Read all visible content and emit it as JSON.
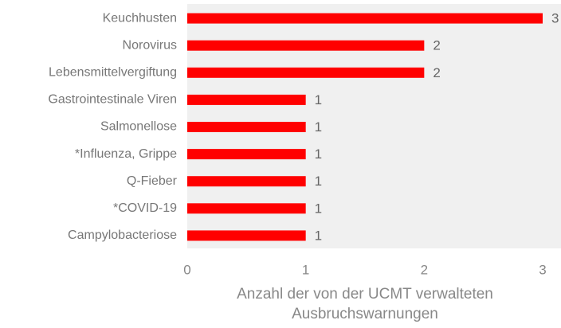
{
  "chart_data": {
    "type": "bar",
    "orientation": "horizontal",
    "x_label": "Anzahl der von der UCMT verwalteten Ausbruchswarnungen",
    "categories": [
      "Keuchhusten",
      "Norovirus",
      "Lebensmittelvergiftung",
      "Gastrointestinale Viren",
      "Salmonellose",
      "*Influenza, Grippe",
      "Q-Fieber",
      "*COVID-19",
      "Campylobacteriose"
    ],
    "values": [
      3,
      2,
      2,
      1,
      1,
      1,
      1,
      1,
      1
    ],
    "color": "#ff0000",
    "xlim": [
      0,
      3
    ],
    "xticks": [
      0,
      1,
      2,
      3
    ],
    "grid": false
  }
}
